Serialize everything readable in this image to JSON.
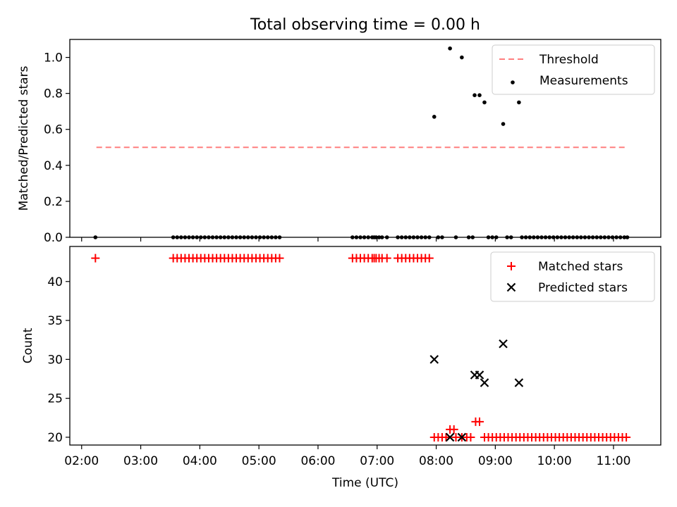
{
  "figure": {
    "title": "Total observing time = 0.00 h"
  },
  "chart_data": [
    {
      "type": "scatter",
      "ylabel": "Matched/Predicted stars",
      "xlim": [
        "01:48",
        "11:48"
      ],
      "ylim": [
        0,
        1.1
      ],
      "yticks": [
        0.0,
        0.2,
        0.4,
        0.6,
        0.8,
        1.0
      ],
      "grid": false,
      "legend": "top-right",
      "series": [
        {
          "name": "Threshold",
          "kind": "line",
          "style": "dashed",
          "color": "#ff7f7f",
          "points": [
            [
              "02:15",
              0.5
            ],
            [
              "11:13",
              0.5
            ]
          ]
        },
        {
          "name": "Measurements",
          "kind": "scatter",
          "color": "#000000",
          "points": [
            [
              "02:14",
              0.0
            ],
            [
              "03:33",
              0.0
            ],
            [
              "03:37",
              0.0
            ],
            [
              "03:41",
              0.0
            ],
            [
              "03:45",
              0.0
            ],
            [
              "03:49",
              0.0
            ],
            [
              "03:53",
              0.0
            ],
            [
              "03:57",
              0.0
            ],
            [
              "04:01",
              0.0
            ],
            [
              "04:05",
              0.0
            ],
            [
              "04:09",
              0.0
            ],
            [
              "04:13",
              0.0
            ],
            [
              "04:17",
              0.0
            ],
            [
              "04:21",
              0.0
            ],
            [
              "04:25",
              0.0
            ],
            [
              "04:29",
              0.0
            ],
            [
              "04:33",
              0.0
            ],
            [
              "04:37",
              0.0
            ],
            [
              "04:41",
              0.0
            ],
            [
              "04:45",
              0.0
            ],
            [
              "04:49",
              0.0
            ],
            [
              "04:53",
              0.0
            ],
            [
              "04:57",
              0.0
            ],
            [
              "05:01",
              0.0
            ],
            [
              "05:05",
              0.0
            ],
            [
              "05:09",
              0.0
            ],
            [
              "05:13",
              0.0
            ],
            [
              "05:17",
              0.0
            ],
            [
              "05:21",
              0.0
            ],
            [
              "06:35",
              0.0
            ],
            [
              "06:39",
              0.0
            ],
            [
              "06:43",
              0.0
            ],
            [
              "06:47",
              0.0
            ],
            [
              "06:51",
              0.0
            ],
            [
              "06:55",
              0.0
            ],
            [
              "06:57",
              0.0
            ],
            [
              "06:59",
              0.0
            ],
            [
              "07:02",
              0.0
            ],
            [
              "07:05",
              0.0
            ],
            [
              "07:10",
              0.0
            ],
            [
              "07:21",
              0.0
            ],
            [
              "07:25",
              0.0
            ],
            [
              "07:29",
              0.0
            ],
            [
              "07:33",
              0.0
            ],
            [
              "07:37",
              0.0
            ],
            [
              "07:41",
              0.0
            ],
            [
              "07:45",
              0.0
            ],
            [
              "07:49",
              0.0
            ],
            [
              "07:53",
              0.0
            ],
            [
              "07:58",
              0.67
            ],
            [
              "08:02",
              0.0
            ],
            [
              "08:06",
              0.0
            ],
            [
              "08:14",
              1.05
            ],
            [
              "08:20",
              0.0
            ],
            [
              "08:26",
              1.0
            ],
            [
              "08:33",
              0.0
            ],
            [
              "08:37",
              0.0
            ],
            [
              "08:39",
              0.79
            ],
            [
              "08:44",
              0.79
            ],
            [
              "08:49",
              0.75
            ],
            [
              "08:53",
              0.0
            ],
            [
              "08:57",
              0.0
            ],
            [
              "09:01",
              0.0
            ],
            [
              "09:08",
              0.63
            ],
            [
              "09:12",
              0.0
            ],
            [
              "09:16",
              0.0
            ],
            [
              "09:24",
              0.75
            ],
            [
              "09:27",
              0.0
            ],
            [
              "09:31",
              0.0
            ],
            [
              "09:35",
              0.0
            ],
            [
              "09:39",
              0.0
            ],
            [
              "09:43",
              0.0
            ],
            [
              "09:47",
              0.0
            ],
            [
              "09:51",
              0.0
            ],
            [
              "09:55",
              0.0
            ],
            [
              "09:59",
              0.0
            ],
            [
              "10:03",
              0.0
            ],
            [
              "10:07",
              0.0
            ],
            [
              "10:11",
              0.0
            ],
            [
              "10:15",
              0.0
            ],
            [
              "10:19",
              0.0
            ],
            [
              "10:23",
              0.0
            ],
            [
              "10:27",
              0.0
            ],
            [
              "10:31",
              0.0
            ],
            [
              "10:35",
              0.0
            ],
            [
              "10:39",
              0.0
            ],
            [
              "10:43",
              0.0
            ],
            [
              "10:47",
              0.0
            ],
            [
              "10:51",
              0.0
            ],
            [
              "10:55",
              0.0
            ],
            [
              "10:59",
              0.0
            ],
            [
              "11:03",
              0.0
            ],
            [
              "11:07",
              0.0
            ],
            [
              "11:11",
              0.0
            ],
            [
              "11:14",
              0.0
            ]
          ]
        }
      ]
    },
    {
      "type": "scatter",
      "xlabel": "Time (UTC)",
      "ylabel": "Count",
      "xlim": [
        "01:48",
        "11:48"
      ],
      "ylim": [
        19,
        44.5
      ],
      "yticks": [
        20,
        25,
        30,
        35,
        40
      ],
      "xticks": [
        "02:00",
        "03:00",
        "04:00",
        "05:00",
        "06:00",
        "07:00",
        "08:00",
        "09:00",
        "10:00",
        "11:00"
      ],
      "grid": false,
      "legend": "top-right",
      "series": [
        {
          "name": "Matched stars",
          "kind": "scatter",
          "marker": "plus",
          "color": "#ff0000",
          "points": [
            [
              "02:14",
              43
            ],
            [
              "03:33",
              43
            ],
            [
              "03:37",
              43
            ],
            [
              "03:41",
              43
            ],
            [
              "03:45",
              43
            ],
            [
              "03:49",
              43
            ],
            [
              "03:53",
              43
            ],
            [
              "03:57",
              43
            ],
            [
              "04:01",
              43
            ],
            [
              "04:05",
              43
            ],
            [
              "04:09",
              43
            ],
            [
              "04:13",
              43
            ],
            [
              "04:17",
              43
            ],
            [
              "04:21",
              43
            ],
            [
              "04:25",
              43
            ],
            [
              "04:29",
              43
            ],
            [
              "04:33",
              43
            ],
            [
              "04:37",
              43
            ],
            [
              "04:41",
              43
            ],
            [
              "04:45",
              43
            ],
            [
              "04:49",
              43
            ],
            [
              "04:53",
              43
            ],
            [
              "04:57",
              43
            ],
            [
              "05:01",
              43
            ],
            [
              "05:05",
              43
            ],
            [
              "05:09",
              43
            ],
            [
              "05:13",
              43
            ],
            [
              "05:17",
              43
            ],
            [
              "05:21",
              43
            ],
            [
              "06:35",
              43
            ],
            [
              "06:39",
              43
            ],
            [
              "06:43",
              43
            ],
            [
              "06:47",
              43
            ],
            [
              "06:51",
              43
            ],
            [
              "06:55",
              43
            ],
            [
              "06:57",
              43
            ],
            [
              "06:59",
              43
            ],
            [
              "07:02",
              43
            ],
            [
              "07:05",
              43
            ],
            [
              "07:10",
              43
            ],
            [
              "07:21",
              43
            ],
            [
              "07:25",
              43
            ],
            [
              "07:29",
              43
            ],
            [
              "07:33",
              43
            ],
            [
              "07:37",
              43
            ],
            [
              "07:41",
              43
            ],
            [
              "07:45",
              43
            ],
            [
              "07:49",
              43
            ],
            [
              "07:53",
              43
            ],
            [
              "07:58",
              20
            ],
            [
              "08:02",
              20
            ],
            [
              "08:06",
              20
            ],
            [
              "08:10",
              20
            ],
            [
              "08:14",
              21
            ],
            [
              "08:18",
              21
            ],
            [
              "08:20",
              20
            ],
            [
              "08:26",
              20
            ],
            [
              "08:31",
              20
            ],
            [
              "08:35",
              20
            ],
            [
              "08:40",
              22
            ],
            [
              "08:44",
              22
            ],
            [
              "08:49",
              20
            ],
            [
              "08:53",
              20
            ],
            [
              "08:57",
              20
            ],
            [
              "09:01",
              20
            ],
            [
              "09:05",
              20
            ],
            [
              "09:09",
              20
            ],
            [
              "09:13",
              20
            ],
            [
              "09:17",
              20
            ],
            [
              "09:21",
              20
            ],
            [
              "09:25",
              20
            ],
            [
              "09:29",
              20
            ],
            [
              "09:33",
              20
            ],
            [
              "09:37",
              20
            ],
            [
              "09:41",
              20
            ],
            [
              "09:45",
              20
            ],
            [
              "09:49",
              20
            ],
            [
              "09:53",
              20
            ],
            [
              "09:57",
              20
            ],
            [
              "10:01",
              20
            ],
            [
              "10:05",
              20
            ],
            [
              "10:09",
              20
            ],
            [
              "10:13",
              20
            ],
            [
              "10:17",
              20
            ],
            [
              "10:21",
              20
            ],
            [
              "10:25",
              20
            ],
            [
              "10:29",
              20
            ],
            [
              "10:33",
              20
            ],
            [
              "10:37",
              20
            ],
            [
              "10:41",
              20
            ],
            [
              "10:45",
              20
            ],
            [
              "10:49",
              20
            ],
            [
              "10:53",
              20
            ],
            [
              "10:57",
              20
            ],
            [
              "11:01",
              20
            ],
            [
              "11:05",
              20
            ],
            [
              "11:09",
              20
            ],
            [
              "11:13",
              20
            ]
          ]
        },
        {
          "name": "Predicted stars",
          "kind": "scatter",
          "marker": "x",
          "color": "#000000",
          "points": [
            [
              "07:58",
              30
            ],
            [
              "08:14",
              20
            ],
            [
              "08:26",
              20
            ],
            [
              "08:39",
              28
            ],
            [
              "08:44",
              28
            ],
            [
              "08:49",
              27
            ],
            [
              "09:08",
              32
            ],
            [
              "09:24",
              27
            ]
          ]
        }
      ]
    }
  ]
}
